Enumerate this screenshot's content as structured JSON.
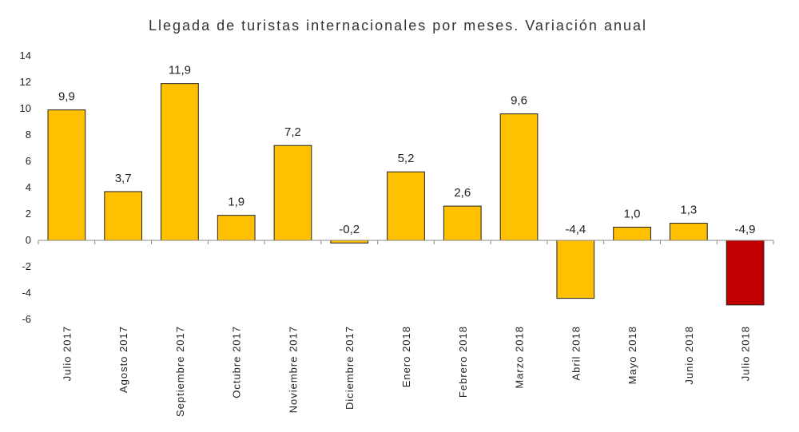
{
  "chart_data": {
    "type": "bar",
    "title": "Llegada de turistas internacionales por meses. Variación anual",
    "xlabel": "",
    "ylabel": "",
    "ylim": [
      -6,
      14
    ],
    "yticks": [
      14,
      12,
      10,
      8,
      6,
      4,
      2,
      0,
      -2,
      -4,
      -6
    ],
    "grid": false,
    "legend": "none",
    "categories": [
      "Julio 2017",
      "Agosto 2017",
      "Septiembre 2017",
      "Octubre 2017",
      "Noviembre 2017",
      "Diciembre 2017",
      "Enero 2018",
      "Febrero 2018",
      "Marzo 2018",
      "Abril 2018",
      "Mayo 2018",
      "Junio 2018",
      "Julio 2018"
    ],
    "values": [
      9.9,
      3.7,
      11.9,
      1.9,
      7.2,
      -0.2,
      5.2,
      2.6,
      9.6,
      -4.4,
      1.0,
      1.3,
      -4.9
    ],
    "data_labels": [
      "9,9",
      "3,7",
      "11,9",
      "1,9",
      "7,2",
      "-0,2",
      "5,2",
      "2,6",
      "9,6",
      "-4,4",
      "1,0",
      "1,3",
      "-4,9"
    ],
    "colors": {
      "default_bar": "#FFC000",
      "highlight_bar": "#C00000",
      "bar_stroke": "#222222",
      "axis": "#888888"
    },
    "highlight_index": 12
  }
}
